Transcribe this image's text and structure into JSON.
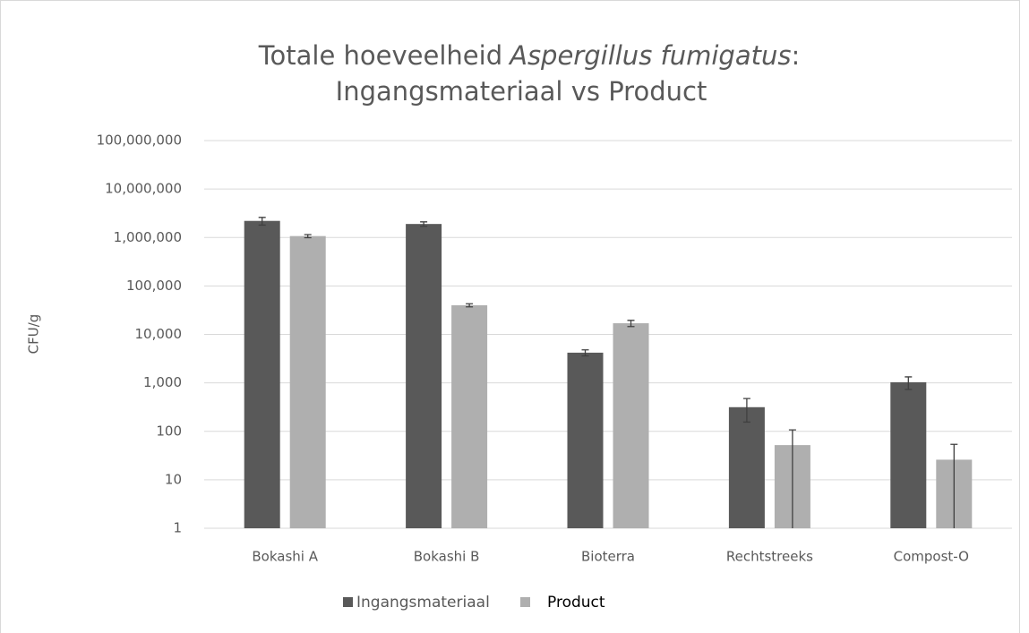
{
  "chart_data": {
    "type": "bar",
    "title": [
      "Totale hoeveelheid",
      "Aspergillus fumigatus",
      ":",
      "Ingangsmateriaal vs Product"
    ],
    "ylabel": "CFU/g",
    "log_scale": true,
    "grid": true,
    "legend": "bottom",
    "categories": [
      "Bokashi A",
      "Bokashi B",
      "Bioterra",
      "Rechtstreeks",
      "Compost-O"
    ],
    "series": [
      {
        "name": "Ingangsmateriaal",
        "color": "#595959",
        "values": [
          2200000,
          1900000,
          4200,
          315,
          1030
        ],
        "errors": [
          400000,
          200000,
          600,
          160,
          300
        ]
      },
      {
        "name": "Product",
        "color": "#afafaf",
        "values": [
          1070000,
          40000,
          17000,
          52,
          26
        ],
        "errors": [
          80000,
          3000,
          2500,
          55,
          28
        ]
      }
    ],
    "ylim": [
      1,
      100000000
    ],
    "yticks": [
      1,
      10,
      100,
      {
        "value": 1000,
        "label": "1,000"
      },
      {
        "value": 10000,
        "label": "10,000"
      },
      {
        "value": 100000,
        "label": "100,000"
      },
      {
        "value": 1000000,
        "label": "1,000,000"
      },
      {
        "value": 10000000,
        "label": "10,000,000"
      },
      {
        "value": 100000000,
        "label": "100,000,000"
      }
    ]
  }
}
